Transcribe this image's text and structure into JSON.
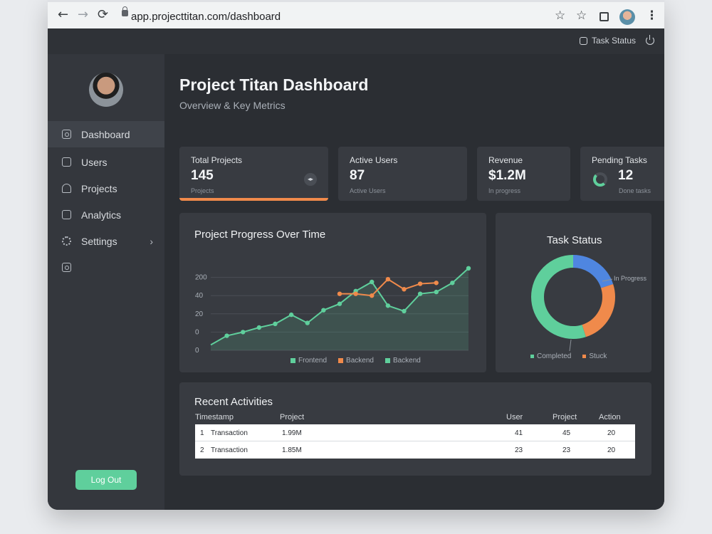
{
  "browser": {
    "back_icon": "←",
    "forward_icon": "→",
    "reload_icon": "⟳",
    "url": "app.projecttitan.com/dashboard",
    "star_icon": "☆",
    "more_icon": "⋮"
  },
  "topbar": {
    "task_status_label": "Task Status"
  },
  "sidebar": {
    "items": [
      {
        "label": "Dashboard",
        "active": true
      },
      {
        "label": "Users",
        "active": false
      },
      {
        "label": "Projects",
        "active": false
      },
      {
        "label": "Analytics",
        "active": false
      },
      {
        "label": "Settings",
        "active": false,
        "chevron": "›"
      },
      {
        "label": "",
        "active": false
      }
    ],
    "logout_label": "Log Out"
  },
  "main": {
    "title": "Project Titan Dashboard",
    "subtitle": "Overview & Key Metrics"
  },
  "stats": [
    {
      "label": "Total Projects",
      "value": "145",
      "sub": "Projects",
      "progress": 1.0
    },
    {
      "label": "Active Users",
      "value": "87",
      "sub": "Active Users"
    },
    {
      "label": "Revenue",
      "value": "$1.2M",
      "sub": "In progress"
    },
    {
      "label": "Pending Tasks",
      "value": "12",
      "sub": "Done tasks"
    }
  ],
  "progress_chart": {
    "title": "Project Progress Over Time",
    "legend": [
      "Frontend",
      "Backend",
      "Backend"
    ]
  },
  "task_status": {
    "title": "Task Status",
    "in_progress_label": "In Progress",
    "legend": [
      "Completed",
      "Stuck"
    ]
  },
  "activities": {
    "title": "Recent Activities",
    "headers": [
      "Timestamp",
      "Project",
      "User",
      "Project",
      "Action"
    ],
    "rows": [
      {
        "num": "1",
        "name": "Transaction",
        "amount": "1.99M",
        "user": "41",
        "project": "45",
        "action": "20"
      },
      {
        "num": "2",
        "name": "Transaction",
        "amount": "1.85M",
        "user": "23",
        "project": "23",
        "action": "20"
      }
    ]
  },
  "colors": {
    "accent_green": "#5fcf9c",
    "accent_orange": "#f08a4b",
    "accent_blue": "#4f86e0"
  },
  "chart_data": [
    {
      "type": "line",
      "title": "Project Progress Over Time",
      "ytick_labels": [
        "0",
        "0",
        "20",
        "40",
        "200"
      ],
      "grid": true,
      "legend_position": "bottom",
      "series": [
        {
          "name": "Frontend",
          "color": "#5fcf9c",
          "area": true,
          "values": [
            -14,
            -4,
            0,
            5,
            9,
            19,
            10,
            24,
            31,
            45,
            55,
            29,
            23,
            42,
            44,
            54,
            70
          ]
        },
        {
          "name": "Backend",
          "color": "#f08a4b",
          "points": [
            [
              8,
              42
            ],
            [
              9,
              42
            ],
            [
              10,
              40
            ],
            [
              11,
              58
            ],
            [
              12,
              47
            ],
            [
              13,
              53
            ],
            [
              14,
              54
            ]
          ]
        }
      ]
    },
    {
      "type": "pie",
      "title": "Task Status",
      "slices": [
        {
          "label": "In Progress",
          "value": 0.2,
          "color": "#4f86e0"
        },
        {
          "label": "Stuck",
          "value": 0.25,
          "color": "#f08a4b"
        },
        {
          "label": "Completed",
          "value": 0.55,
          "color": "#5fcf9c"
        }
      ]
    }
  ]
}
